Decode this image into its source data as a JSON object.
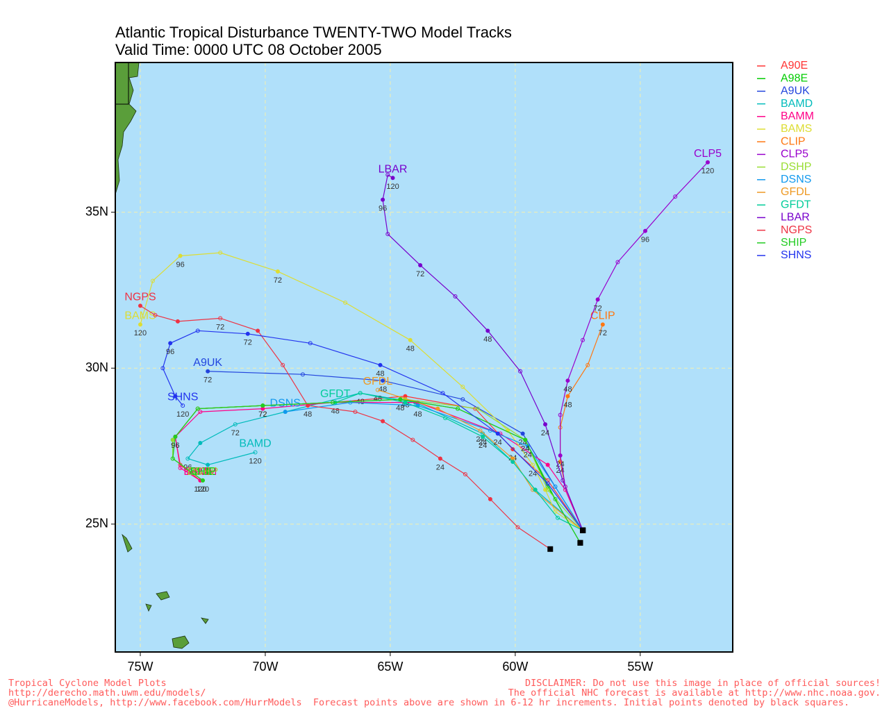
{
  "chart_data": {
    "type": "line",
    "title": "Atlantic Tropical Disturbance TWENTY-TWO Model Tracks",
    "subtitle": "Valid Time: 0000 UTC 08 October 2005",
    "xlim": [
      -76,
      -51.3
    ],
    "ylim": [
      20.9,
      39.8
    ],
    "xticks": [
      {
        "value": -75,
        "label": "75W"
      },
      {
        "value": -70,
        "label": "70W"
      },
      {
        "value": -65,
        "label": "65W"
      },
      {
        "value": -60,
        "label": "60W"
      },
      {
        "value": -55,
        "label": "55W"
      }
    ],
    "yticks": [
      {
        "value": 25,
        "label": "25N"
      },
      {
        "value": 30,
        "label": "30N"
      },
      {
        "value": 35,
        "label": "35N"
      }
    ],
    "grid": true,
    "legend": "right",
    "series": [
      {
        "name": "A90E",
        "color": "#ff3333",
        "x": [
          -57.3,
          -58.7,
          -60.1,
          -61.6,
          -64.4,
          -67.3,
          -70.1,
          -72.7,
          -73.6,
          -73.4,
          -72.6
        ],
        "y": [
          24.8,
          26.4,
          27.4,
          28.7,
          29.1,
          28.9,
          28.8,
          28.7,
          27.8,
          26.9,
          26.4
        ],
        "hours": [
          null,
          null,
          24,
          null,
          48,
          null,
          72,
          null,
          96,
          null,
          120
        ]
      },
      {
        "name": "A98E",
        "color": "#00cc00",
        "x": [
          -57.4,
          -58.7,
          -59.6,
          -62.3,
          -64.6,
          -67.3,
          -70.1,
          -72.7,
          -73.7,
          -73.7,
          -72.5
        ],
        "y": [
          24.4,
          26.2,
          27.7,
          28.7,
          29.0,
          28.9,
          28.8,
          28.7,
          27.7,
          27.1,
          26.4
        ],
        "hours": [
          null,
          null,
          null,
          null,
          null,
          null,
          null,
          null,
          null,
          null,
          null
        ]
      },
      {
        "name": "A9UK",
        "color": "#2244dd",
        "x": [
          -57.3,
          -58.4,
          -59.7,
          -62.1,
          -65.3,
          -68.5,
          -72.3
        ],
        "y": [
          24.8,
          26.2,
          27.9,
          29.0,
          29.6,
          29.8,
          29.9
        ],
        "hours": [
          null,
          null,
          24,
          null,
          48,
          null,
          72
        ]
      },
      {
        "name": "BAMD",
        "color": "#00bbbb",
        "x": [
          -57.3,
          -59.2,
          -60.1,
          -61.3,
          -64.0,
          -66.2,
          -69.2,
          -71.2,
          -72.6,
          -73.1,
          -72.3,
          -70.4
        ],
        "y": [
          24.8,
          26.1,
          27.0,
          27.9,
          28.9,
          29.2,
          28.6,
          28.2,
          27.6,
          27.1,
          26.9,
          27.3
        ],
        "hours": [
          null,
          null,
          null,
          24,
          null,
          48,
          null,
          72,
          null,
          96,
          null,
          120
        ]
      },
      {
        "name": "BAMM",
        "color": "#ff0088",
        "x": [
          -57.3,
          -58.0,
          -58.7,
          -60.6,
          -63.9,
          -67.3,
          -70.1,
          -72.6,
          -73.6,
          -73.4,
          -72.6
        ],
        "y": [
          24.8,
          26.1,
          26.9,
          27.9,
          28.9,
          28.9,
          28.7,
          28.6,
          27.8,
          26.8,
          26.4
        ],
        "hours": [
          null,
          null,
          null,
          null,
          null,
          null,
          null,
          null,
          null,
          null,
          null
        ]
      },
      {
        "name": "BAMS",
        "color": "#dddd33",
        "x": [
          -57.3,
          -58.4,
          -58.8,
          -59.3,
          -60.3,
          -62.1,
          -64.2,
          -66.8,
          -69.5,
          -71.8,
          -73.4,
          -74.5,
          -75.0
        ],
        "y": [
          24.8,
          25.4,
          26.1,
          26.9,
          28.0,
          29.4,
          30.9,
          32.1,
          33.1,
          33.7,
          33.6,
          32.8,
          31.4
        ],
        "hours": [
          null,
          null,
          null,
          24,
          null,
          null,
          48,
          null,
          72,
          null,
          96,
          null,
          120
        ]
      },
      {
        "name": "CLIP",
        "color": "#ff7711",
        "x": [
          -57.3,
          -58.0,
          -58.2,
          -58.2,
          -57.9,
          -57.1,
          -56.5
        ],
        "y": [
          24.8,
          26.2,
          27.0,
          28.1,
          29.1,
          30.1,
          31.4
        ],
        "hours": [
          null,
          null,
          24,
          null,
          48,
          null,
          72
        ]
      },
      {
        "name": "CLP5",
        "color": "#9900cc",
        "x": [
          -57.3,
          -58.0,
          -58.2,
          -58.2,
          -57.9,
          -57.3,
          -56.7,
          -55.9,
          -54.8,
          -53.6,
          -52.3
        ],
        "y": [
          24.8,
          26.2,
          27.2,
          28.5,
          29.6,
          30.9,
          32.2,
          33.4,
          34.4,
          35.5,
          36.6
        ],
        "hours": [
          null,
          null,
          24,
          null,
          48,
          null,
          72,
          null,
          96,
          null,
          120
        ]
      },
      {
        "name": "DSHP",
        "color": "#99dd33",
        "x": [
          -57.3,
          -58.7,
          -59.6,
          -61.5,
          -64.4,
          -67.3,
          -70.1,
          -72.7,
          -73.7,
          -73.7,
          -72.5
        ],
        "y": [
          24.8,
          26.1,
          27.7,
          28.7,
          29.0,
          28.9,
          28.8,
          28.7,
          27.7,
          27.1,
          26.4
        ],
        "hours": [
          null,
          null,
          24,
          null,
          null,
          null,
          null,
          null,
          null,
          null,
          null
        ]
      },
      {
        "name": "DSNS",
        "color": "#1199ee",
        "x": [
          -57.3,
          -58.4,
          -59.5,
          -61.0,
          -63.9,
          -66.6,
          -69.2
        ],
        "y": [
          24.8,
          26.2,
          27.5,
          28.0,
          28.8,
          28.9,
          28.6
        ],
        "hours": [
          null,
          null,
          24,
          null,
          48,
          null,
          null
        ]
      },
      {
        "name": "GFDL",
        "color": "#ee9922",
        "x": [
          -57.3,
          -59.3,
          -60.1,
          -61.4,
          -63.1,
          -65.5
        ],
        "y": [
          24.8,
          26.1,
          27.1,
          28.0,
          28.7,
          29.3
        ],
        "hours": [
          null,
          null,
          null,
          24,
          null,
          48
        ]
      },
      {
        "name": "GFDT",
        "color": "#00cc99",
        "x": [
          -57.3,
          -58.3,
          -59.2,
          -60.1,
          -61.3,
          -62.8,
          -64.4,
          -66.2,
          -67.2
        ],
        "y": [
          24.8,
          25.2,
          26.1,
          27.0,
          27.8,
          28.4,
          28.9,
          29.2,
          28.9
        ],
        "hours": [
          null,
          null,
          null,
          null,
          24,
          null,
          null,
          null,
          48
        ]
      },
      {
        "name": "LBAR",
        "color": "#7700cc",
        "x": [
          -57.3,
          -58.1,
          -58.8,
          -59.8,
          -61.1,
          -62.4,
          -63.8,
          -65.1,
          -65.3,
          -65.1,
          -64.9
        ],
        "y": [
          24.8,
          26.4,
          28.2,
          29.9,
          31.2,
          32.3,
          33.3,
          34.3,
          35.4,
          36.2,
          36.1
        ],
        "hours": [
          null,
          null,
          24,
          null,
          48,
          null,
          72,
          null,
          96,
          null,
          120
        ]
      },
      {
        "name": "NGPS",
        "color": "#ee3344",
        "x": [
          -58.6,
          -59.9,
          -61.0,
          -62.0,
          -63.0,
          -64.1,
          -65.3,
          -66.4,
          -68.3,
          -69.3,
          -70.3,
          -71.8,
          -73.5,
          -74.4,
          -75.0
        ],
        "y": [
          24.2,
          24.9,
          25.8,
          26.6,
          27.1,
          27.7,
          28.3,
          28.6,
          28.8,
          30.1,
          31.2,
          31.6,
          31.5,
          31.7,
          32.0
        ],
        "hours": [
          null,
          null,
          null,
          null,
          24,
          null,
          null,
          null,
          48,
          null,
          null,
          72,
          null,
          null,
          null
        ]
      },
      {
        "name": "SHIP",
        "color": "#22cc22",
        "x": [
          -57.4,
          -58.4,
          -59.6,
          -62.3,
          -64.6,
          -67.3,
          -70.1,
          -72.7,
          -73.6,
          -73.7,
          -72.5
        ],
        "y": [
          24.4,
          25.8,
          27.7,
          28.7,
          29.0,
          28.9,
          28.8,
          28.7,
          27.8,
          27.1,
          26.4
        ],
        "hours": [
          null,
          null,
          24,
          null,
          48,
          null,
          72,
          null,
          96,
          null,
          120
        ]
      },
      {
        "name": "SHNS",
        "color": "#2233ee",
        "x": [
          -57.3,
          -58.7,
          -60.7,
          -62.9,
          -65.4,
          -68.2,
          -70.7,
          -72.7,
          -73.8,
          -74.1,
          -73.6,
          -73.3
        ],
        "y": [
          24.8,
          26.3,
          27.9,
          29.2,
          30.1,
          30.8,
          31.1,
          31.2,
          30.8,
          30.0,
          29.1,
          28.8
        ],
        "hours": [
          null,
          null,
          24,
          null,
          48,
          null,
          72,
          null,
          96,
          null,
          null,
          120
        ]
      }
    ],
    "footer_left": [
      "Tropical Cyclone Model Plots",
      "http://derecho.math.uwm.edu/models/"
    ],
    "footer_right": [
      "DISCLAIMER: Do not use this image in place of official sources!",
      "The official NHC forecast is available at http://www.nhc.noaa.gov."
    ],
    "footer_bottom": "@HurricaneModels, http://www.facebook.com/HurrModels  Forecast points above are shown in 6-12 hr increments. Initial points denoted by black squares."
  }
}
